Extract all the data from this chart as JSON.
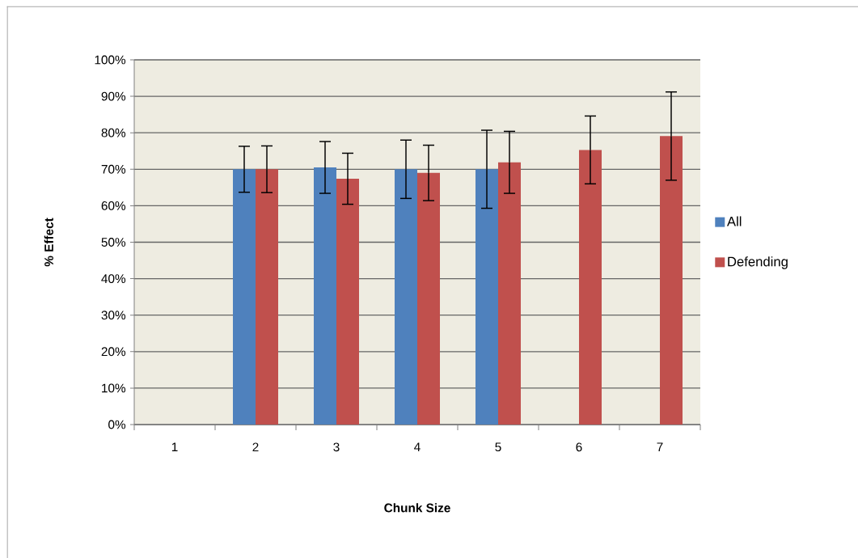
{
  "chart_data": {
    "type": "bar",
    "xlabel": "Chunk Size",
    "ylabel": "% Effect",
    "categories": [
      "1",
      "2",
      "3",
      "4",
      "5",
      "6",
      "7"
    ],
    "series": [
      {
        "name": "All",
        "color": "#4f81bd",
        "values": [
          null,
          70,
          70.5,
          70,
          70,
          null,
          null
        ],
        "errors": [
          null,
          6.3,
          7.1,
          8.0,
          10.7,
          null,
          null
        ]
      },
      {
        "name": "Defending",
        "color": "#c0504d",
        "values": [
          null,
          70,
          67.4,
          69,
          71.9,
          75.3,
          79.1
        ],
        "errors": [
          null,
          6.4,
          7.0,
          7.6,
          8.5,
          9.3,
          12.1
        ]
      }
    ],
    "ylim": [
      0,
      100
    ],
    "yticks": [
      {
        "value": 0,
        "label": "0%"
      },
      {
        "value": 10,
        "label": "10%"
      },
      {
        "value": 20,
        "label": "20%"
      },
      {
        "value": 30,
        "label": "30%"
      },
      {
        "value": 40,
        "label": "40%"
      },
      {
        "value": 50,
        "label": "50%"
      },
      {
        "value": 60,
        "label": "60%"
      },
      {
        "value": 70,
        "label": "70%"
      },
      {
        "value": 80,
        "label": "80%"
      },
      {
        "value": 90,
        "label": "90%"
      },
      {
        "value": 100,
        "label": "100%"
      }
    ],
    "grid": "y",
    "legend": "right"
  }
}
